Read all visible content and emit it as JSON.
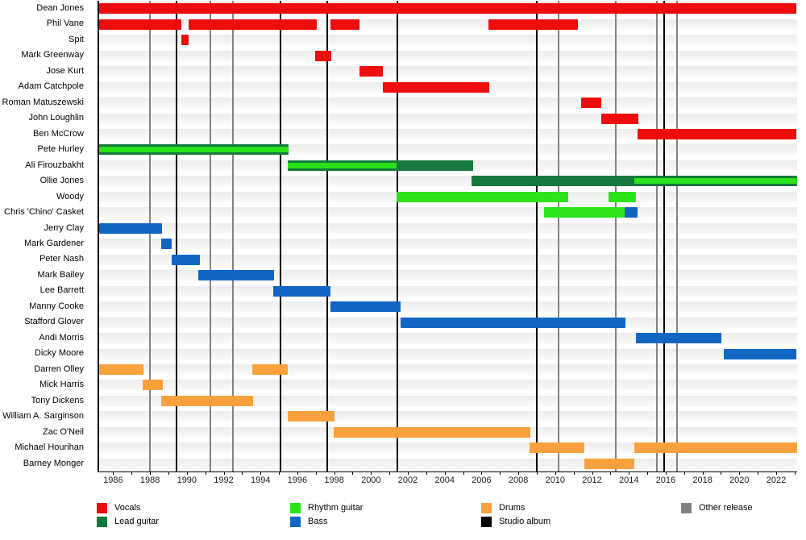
{
  "chart_data": {
    "type": "bar",
    "subtype": "gantt-band-member-timeline",
    "x_axis": {
      "min": 1985.15,
      "max": 2023.05,
      "minor_tick_every": 1,
      "tick_label_years": [
        1986,
        1988,
        1990,
        1992,
        1994,
        1996,
        1998,
        2000,
        2002,
        2004,
        2006,
        2008,
        2010,
        2012,
        2014,
        2016,
        2018,
        2020,
        2022
      ]
    },
    "roles": {
      "vocals": {
        "label": "Vocals",
        "color": "#ee0d0d"
      },
      "lead_guitar": {
        "label": "Lead guitar",
        "color": "#16793c"
      },
      "rhythm_guitar": {
        "label": "Rhythm guitar",
        "color": "#2ce21b"
      },
      "bass": {
        "label": "Bass",
        "color": "#1166c4"
      },
      "drums": {
        "label": "Drums",
        "color": "#f9a13c"
      }
    },
    "members": [
      {
        "name": "Dean Jones",
        "segments": [
          {
            "s": 1985.15,
            "e": 2023.0,
            "role": "vocals"
          }
        ]
      },
      {
        "name": "Phil Vane",
        "segments": [
          {
            "s": 1985.15,
            "e": 1989.6,
            "role": "vocals"
          },
          {
            "s": 1990.0,
            "e": 1996.95,
            "role": "vocals"
          },
          {
            "s": 1997.7,
            "e": 1999.3,
            "role": "vocals"
          },
          {
            "s": 2006.3,
            "e": 2011.15,
            "role": "vocals"
          }
        ]
      },
      {
        "name": "Spit",
        "segments": [
          {
            "s": 1989.6,
            "e": 1990.0,
            "role": "vocals"
          }
        ]
      },
      {
        "name": "Mark Greenway",
        "segments": [
          {
            "s": 1996.9,
            "e": 1997.75,
            "role": "vocals"
          }
        ]
      },
      {
        "name": "Jose Kurt",
        "segments": [
          {
            "s": 1999.3,
            "e": 2000.55,
            "role": "vocals"
          }
        ]
      },
      {
        "name": "Adam Catchpole",
        "segments": [
          {
            "s": 2000.55,
            "e": 2006.35,
            "role": "vocals"
          }
        ]
      },
      {
        "name": "Roman Matuszewski",
        "segments": [
          {
            "s": 2011.3,
            "e": 2012.4,
            "role": "vocals"
          }
        ]
      },
      {
        "name": "John Loughlin",
        "segments": [
          {
            "s": 2012.4,
            "e": 2014.45,
            "role": "vocals"
          }
        ]
      },
      {
        "name": "Ben McCrow",
        "segments": [
          {
            "s": 2014.4,
            "e": 2023.0,
            "role": "vocals"
          }
        ]
      },
      {
        "name": "Pete Hurley",
        "segments": [
          {
            "s": 1985.15,
            "e": 1995.45,
            "role": "lead_guitar",
            "stripe": "rhythm_guitar"
          }
        ]
      },
      {
        "name": "Ali Firouzbakht",
        "segments": [
          {
            "s": 1995.4,
            "e": 2001.3,
            "role": "lead_guitar",
            "stripe": "rhythm_guitar"
          },
          {
            "s": 2001.3,
            "e": 2005.45,
            "role": "lead_guitar"
          }
        ]
      },
      {
        "name": "Ollie Jones",
        "segments": [
          {
            "s": 2005.35,
            "e": 2014.2,
            "role": "lead_guitar"
          },
          {
            "s": 2014.2,
            "e": 2023.05,
            "role": "lead_guitar",
            "stripe": "rhythm_guitar"
          }
        ]
      },
      {
        "name": "Woody",
        "segments": [
          {
            "s": 2001.3,
            "e": 2010.6,
            "role": "rhythm_guitar"
          },
          {
            "s": 2012.8,
            "e": 2014.3,
            "role": "rhythm_guitar"
          }
        ]
      },
      {
        "name": "Chris 'Chino' Casket",
        "segments": [
          {
            "s": 2009.3,
            "e": 2013.7,
            "role": "rhythm_guitar"
          },
          {
            "s": 2013.7,
            "e": 2014.4,
            "role": "bass"
          }
        ]
      },
      {
        "name": "Jerry Clay",
        "segments": [
          {
            "s": 1985.15,
            "e": 1988.55,
            "role": "bass"
          }
        ]
      },
      {
        "name": "Mark Gardener",
        "segments": [
          {
            "s": 1988.5,
            "e": 1989.1,
            "role": "bass"
          }
        ]
      },
      {
        "name": "Peter Nash",
        "segments": [
          {
            "s": 1989.1,
            "e": 1990.6,
            "role": "bass"
          }
        ]
      },
      {
        "name": "Mark Bailey",
        "segments": [
          {
            "s": 1990.55,
            "e": 1994.65,
            "role": "bass"
          }
        ]
      },
      {
        "name": "Lee Barrett",
        "segments": [
          {
            "s": 1994.6,
            "e": 1997.7,
            "role": "bass"
          }
        ]
      },
      {
        "name": "Manny Cooke",
        "segments": [
          {
            "s": 1997.7,
            "e": 2001.5,
            "role": "bass"
          }
        ]
      },
      {
        "name": "Stafford Glover",
        "segments": [
          {
            "s": 2001.5,
            "e": 2013.75,
            "role": "bass"
          }
        ]
      },
      {
        "name": "Andi Morris",
        "segments": [
          {
            "s": 2014.3,
            "e": 2018.95,
            "role": "bass"
          }
        ]
      },
      {
        "name": "Dicky Moore",
        "segments": [
          {
            "s": 2019.05,
            "e": 2023.0,
            "role": "bass"
          }
        ]
      },
      {
        "name": "Darren Olley",
        "segments": [
          {
            "s": 1985.15,
            "e": 1987.55,
            "role": "drums"
          },
          {
            "s": 1993.45,
            "e": 1995.4,
            "role": "drums"
          }
        ]
      },
      {
        "name": "Mick Harris",
        "segments": [
          {
            "s": 1987.5,
            "e": 1988.6,
            "role": "drums"
          }
        ]
      },
      {
        "name": "Tony Dickens",
        "segments": [
          {
            "s": 1988.5,
            "e": 1993.5,
            "role": "drums"
          }
        ]
      },
      {
        "name": "William A. Sarginson",
        "segments": [
          {
            "s": 1995.4,
            "e": 1997.95,
            "role": "drums"
          }
        ]
      },
      {
        "name": "Zac O'Neil",
        "segments": [
          {
            "s": 1997.9,
            "e": 2008.55,
            "role": "drums"
          }
        ]
      },
      {
        "name": "Michael Hourihan",
        "segments": [
          {
            "s": 2008.5,
            "e": 2011.5,
            "role": "drums"
          },
          {
            "s": 2014.2,
            "e": 2023.05,
            "role": "drums"
          }
        ]
      },
      {
        "name": "Barney Monger",
        "segments": [
          {
            "s": 2011.5,
            "e": 2014.2,
            "role": "drums"
          }
        ]
      }
    ],
    "event_lines": {
      "studio_album": {
        "label": "Studio album",
        "color": "#000000",
        "years": [
          1989.35,
          1995.0,
          1997.55,
          2001.35,
          2008.9,
          2015.85
        ]
      },
      "other_release": {
        "label": "Other release",
        "color": "#828282",
        "years": [
          1987.9,
          1991.2,
          1992.4,
          2010.1,
          2013.2,
          2015.45,
          2016.55
        ]
      }
    },
    "legend": {
      "items": [
        {
          "label": "Vocals",
          "color": "#ee0d0d",
          "col": 0,
          "row": 0
        },
        {
          "label": "Lead guitar",
          "color": "#16793c",
          "col": 0,
          "row": 1
        },
        {
          "label": "Rhythm guitar",
          "color": "#2ce21b",
          "col": 1,
          "row": 0
        },
        {
          "label": "Bass",
          "color": "#1166c4",
          "col": 1,
          "row": 1
        },
        {
          "label": "Drums",
          "color": "#f9a13c",
          "col": 2,
          "row": 0
        },
        {
          "label": "Studio album",
          "color": "#000000",
          "col": 2,
          "row": 1
        },
        {
          "label": "Other release",
          "color": "#828282",
          "col": 3,
          "row": 0
        }
      ]
    }
  },
  "layout_colors": {
    "row_track": "#ededed",
    "background": "#ffffff",
    "axis": "#000000",
    "tick_label": "#202122"
  }
}
